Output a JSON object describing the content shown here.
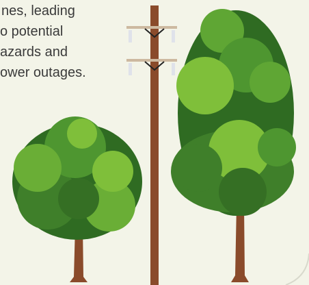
{
  "text": {
    "lines": [
      "nes, leading",
      "o potential",
      "azards and",
      "ower outages."
    ]
  }
}
